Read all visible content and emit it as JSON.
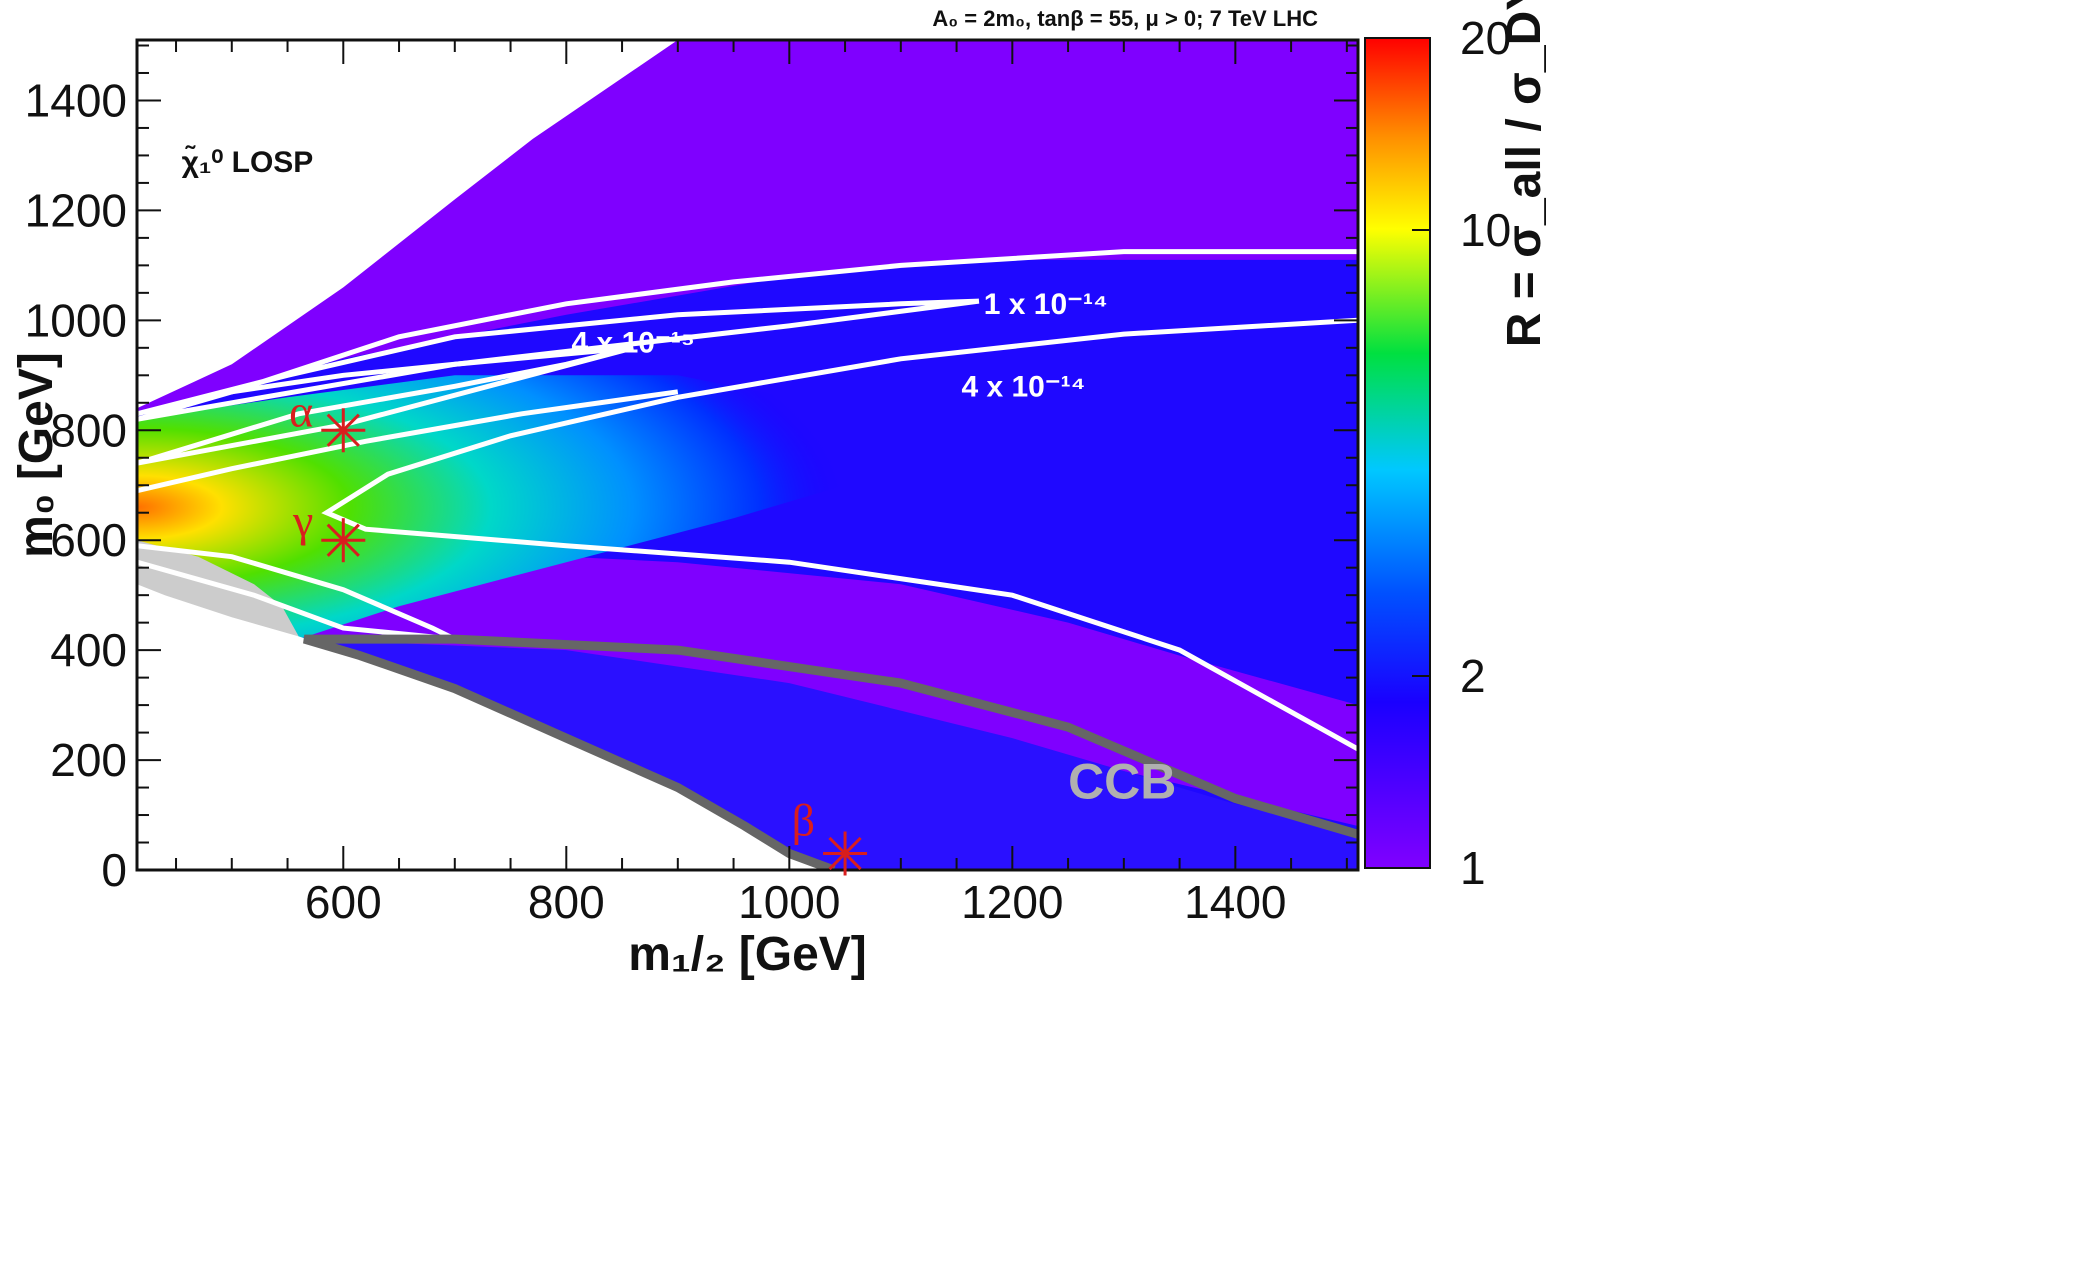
{
  "chart_data": {
    "type": "heatmap",
    "title": "A₀ = 2m₀, tanβ = 55, μ > 0;    7 TeV LHC",
    "xlabel": "m₁/₂ [GeV]",
    "ylabel": "m₀ [GeV]",
    "xlim": [
      415,
      1510
    ],
    "ylim": [
      0,
      1510
    ],
    "xticks": [
      "600",
      "800",
      "1000",
      "1200",
      "1400"
    ],
    "yticks": [
      "0",
      "200",
      "400",
      "600",
      "800",
      "1000",
      "1200",
      "1400"
    ],
    "colorbar": {
      "label": "R = σ_all / σ_DY",
      "scale": "log",
      "range": [
        1,
        20
      ],
      "ticks": [
        "1",
        "2",
        "10",
        "20"
      ],
      "colors": [
        "#8000ff",
        "#0000ff",
        "#00c8ff",
        "#00ff00",
        "#ffff00",
        "#ff8000",
        "#ff0000"
      ]
    },
    "regions": {
      "losp_label": "χ̃₁⁰ LOSP",
      "ccb_label": "CCB"
    },
    "contours": [
      {
        "label": "1 x 10⁻¹⁴",
        "points": [
          [
            1510,
            1125
          ],
          [
            1300,
            1125
          ],
          [
            1100,
            1100
          ],
          [
            950,
            1070
          ],
          [
            800,
            1030
          ],
          [
            650,
            970
          ],
          [
            500,
            870
          ],
          [
            415,
            820
          ],
          [
            500,
            850
          ],
          [
            700,
            920
          ],
          [
            1000,
            990
          ],
          [
            1170,
            1035
          ],
          [
            1100,
            1030
          ],
          [
            900,
            1010
          ],
          [
            700,
            970
          ],
          [
            550,
            900
          ],
          [
            415,
            830
          ]
        ]
      },
      {
        "label": "4 x 10⁻¹⁵",
        "points": [
          [
            500,
            870
          ],
          [
            600,
            900
          ],
          [
            700,
            920
          ],
          [
            860,
            950
          ],
          [
            800,
            920
          ],
          [
            700,
            880
          ],
          [
            560,
            830
          ],
          [
            415,
            740
          ],
          [
            600,
            810
          ],
          [
            860,
            950
          ]
        ]
      },
      {
        "label": "4 x 10⁻¹⁴",
        "points": [
          [
            1510,
            1000
          ],
          [
            1300,
            975
          ],
          [
            1100,
            930
          ],
          [
            900,
            860
          ],
          [
            750,
            790
          ],
          [
            640,
            720
          ],
          [
            585,
            650
          ],
          [
            620,
            620
          ],
          [
            800,
            590
          ],
          [
            1000,
            560
          ],
          [
            1200,
            500
          ],
          [
            1350,
            400
          ],
          [
            1510,
            220
          ]
        ]
      },
      {
        "label": "",
        "points": [
          [
            415,
            690
          ],
          [
            500,
            730
          ],
          [
            620,
            780
          ],
          [
            760,
            830
          ],
          [
            900,
            870
          ]
        ]
      },
      {
        "label": "",
        "points": [
          [
            415,
            590
          ],
          [
            500,
            570
          ],
          [
            600,
            510
          ],
          [
            680,
            440
          ],
          [
            700,
            420
          ],
          [
            600,
            440
          ],
          [
            520,
            500
          ],
          [
            415,
            560
          ]
        ]
      }
    ],
    "benchmarks": [
      {
        "name": "α",
        "x": 600,
        "y": 800
      },
      {
        "name": "γ",
        "x": 600,
        "y": 600
      },
      {
        "name": "β",
        "x": 1050,
        "y": 30
      }
    ],
    "grid": false,
    "legend": "right colorbar"
  }
}
